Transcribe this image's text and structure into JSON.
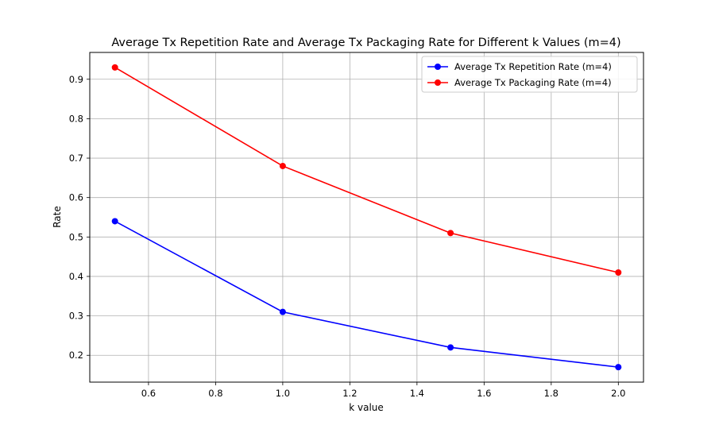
{
  "chart_data": {
    "type": "line",
    "title": "Average Tx Repetition Rate and Average Tx Packaging Rate for Different k Values (m=4)",
    "xlabel": "k value",
    "ylabel": "Rate",
    "x": [
      0.5,
      1.0,
      1.5,
      2.0
    ],
    "xlim": [
      0.425,
      2.075
    ],
    "ylim": [
      0.132,
      0.968
    ],
    "x_ticks": [
      "0.6",
      "0.8",
      "1.0",
      "1.2",
      "1.4",
      "1.6",
      "1.8",
      "2.0"
    ],
    "y_ticks": [
      "0.2",
      "0.3",
      "0.4",
      "0.5",
      "0.6",
      "0.7",
      "0.8",
      "0.9"
    ],
    "grid": true,
    "legend_position": "top-right",
    "series": [
      {
        "name": "Average Tx Repetition Rate (m=4)",
        "color": "#0000ff",
        "marker": "circle",
        "values": [
          0.54,
          0.31,
          0.22,
          0.17
        ]
      },
      {
        "name": "Average Tx Packaging Rate (m=4)",
        "color": "#ff0000",
        "marker": "circle",
        "values": [
          0.93,
          0.68,
          0.51,
          0.41
        ]
      }
    ]
  }
}
